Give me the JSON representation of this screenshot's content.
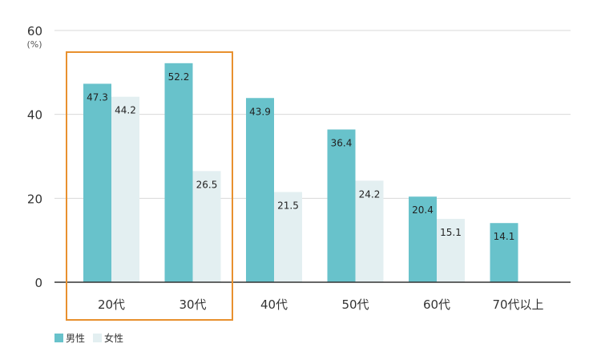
{
  "chart_data": {
    "type": "bar",
    "categories": [
      "20代",
      "30代",
      "40代",
      "50代",
      "60代",
      "70代以上"
    ],
    "series": [
      {
        "name": "男性",
        "color": "#68c2cb",
        "values": [
          47.3,
          52.2,
          43.9,
          36.4,
          20.4,
          14.1
        ]
      },
      {
        "name": "女性",
        "color": "#e3eff1",
        "values": [
          44.2,
          26.5,
          21.5,
          24.2,
          15.1,
          null
        ]
      }
    ],
    "ylim": [
      0,
      60
    ],
    "yticks": [
      0,
      20,
      40,
      60
    ],
    "yunit": "(%)",
    "grid": true,
    "legend_position": "bottom-left",
    "highlight": {
      "categories": [
        "20代",
        "30代"
      ],
      "color": "#e8902e"
    }
  }
}
